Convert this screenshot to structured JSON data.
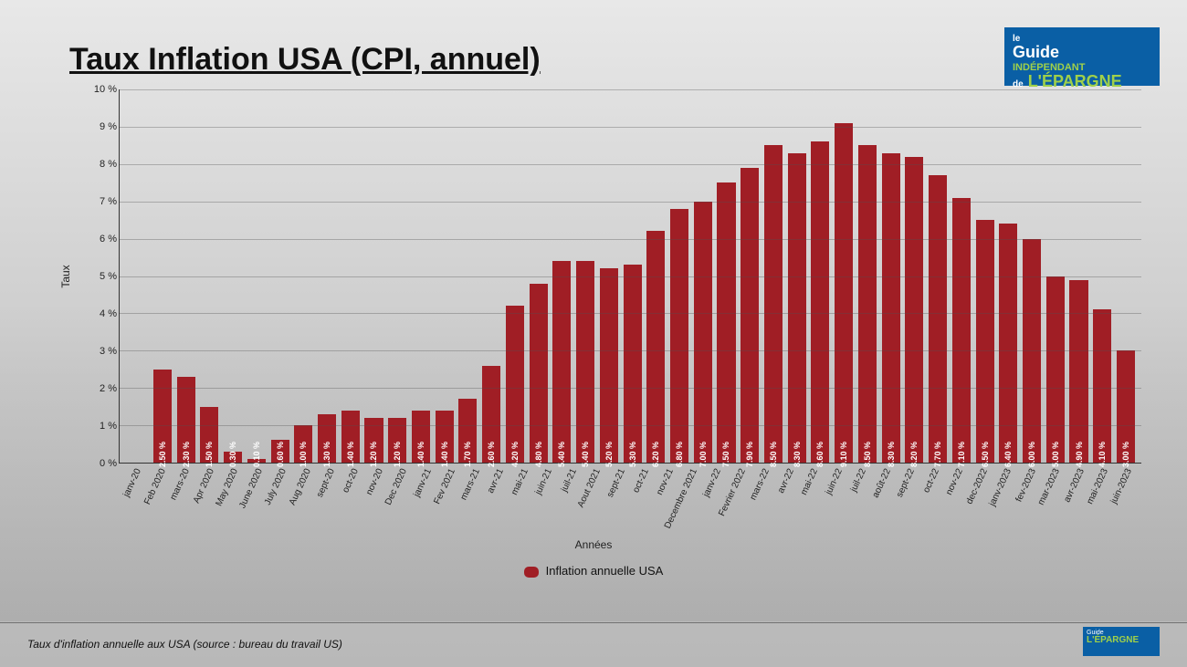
{
  "title": "Taux Inflation USA (CPI, annuel)",
  "logo": {
    "line1": "le",
    "line2": "Guide",
    "line3": "INDÉPENDANT",
    "line4_de": "de",
    "line4": "L'ÉPARGNE",
    "bg_color": "#0a5fa5",
    "accent_color": "#9fd04a"
  },
  "footer": "Taux d'inflation annuelle aux USA (source : bureau du travail US)",
  "chart": {
    "type": "bar",
    "ylabel": "Taux",
    "xlabel": "Années",
    "legend_label": "Inflation annuelle USA",
    "bar_color": "#a01e25",
    "value_label_color": "#ffffff",
    "grid_color": "rgba(80,80,80,0.35)",
    "axis_color": "#333333",
    "background": "transparent",
    "title_fontsize": 34,
    "label_fontsize": 12,
    "tick_fontsize": 11,
    "xlabel_fontsize": 10,
    "value_fontsize": 9,
    "bar_width_ratio": 0.78,
    "ylim": [
      0,
      10
    ],
    "ytick_step": 1,
    "ytick_suffix": " %",
    "categories": [
      "janv-20",
      "Feb 2020",
      "mars-20",
      "Apr 2020",
      "May 2020",
      "June 2020",
      "July 2020",
      "Aug 2020",
      "sept-20",
      "oct-20",
      "nov-20",
      "Dec 2020",
      "janv-21",
      "Fev 2021",
      "mars-21",
      "avr-21",
      "mai-21",
      "juin-21",
      "juil-21",
      "Aout 2021",
      "sept-21",
      "oct-21",
      "nov-21",
      "Decembre 2021",
      "janv-22",
      "Fevrier 2022",
      "mars-22",
      "avr-22",
      "mai-22",
      "juin-22",
      "juil-22",
      "août-22",
      "sept-22",
      "oct-22",
      "nov-22",
      "dec-2022",
      "janv-2023",
      "fev-2023",
      "mar-2023",
      "avr-2023",
      "mai-2023",
      "juin-2023"
    ],
    "values": [
      2.5,
      2.3,
      1.5,
      0.3,
      0.1,
      0.6,
      1.0,
      1.3,
      1.4,
      1.2,
      1.2,
      1.4,
      1.4,
      1.7,
      2.6,
      4.2,
      4.8,
      5.4,
      5.4,
      5.2,
      5.3,
      6.2,
      6.8,
      7.0,
      7.5,
      7.9,
      8.5,
      8.3,
      8.6,
      9.1,
      8.5,
      8.3,
      8.2,
      7.7,
      7.1,
      6.5,
      6.4,
      6.0,
      5.0,
      4.9,
      4.1,
      3.0
    ],
    "value_label_suffix": " %"
  }
}
